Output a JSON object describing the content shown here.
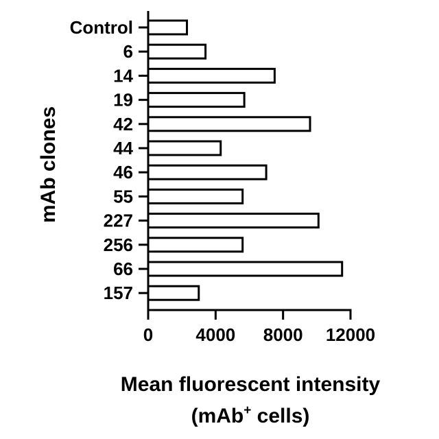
{
  "chart_data": {
    "type": "bar",
    "orientation": "horizontal",
    "categories": [
      "Control",
      "6",
      "14",
      "19",
      "42",
      "44",
      "46",
      "55",
      "227",
      "256",
      "66",
      "157"
    ],
    "values": [
      2300,
      3400,
      7500,
      5700,
      9600,
      4300,
      7000,
      5600,
      10100,
      5600,
      11500,
      3000
    ],
    "ylabel": "mAb clones",
    "xlabel_line1": "Mean fluorescent intensity",
    "xlabel_line2": {
      "pre": "(mAb",
      "sup": "+",
      "post": " cells)"
    },
    "xticks": [
      0,
      4000,
      8000,
      12000
    ],
    "xlim": [
      0,
      12000
    ],
    "bar_fill": "#ffffff",
    "bar_stroke": "#000000",
    "grid": false,
    "legend": "none"
  }
}
